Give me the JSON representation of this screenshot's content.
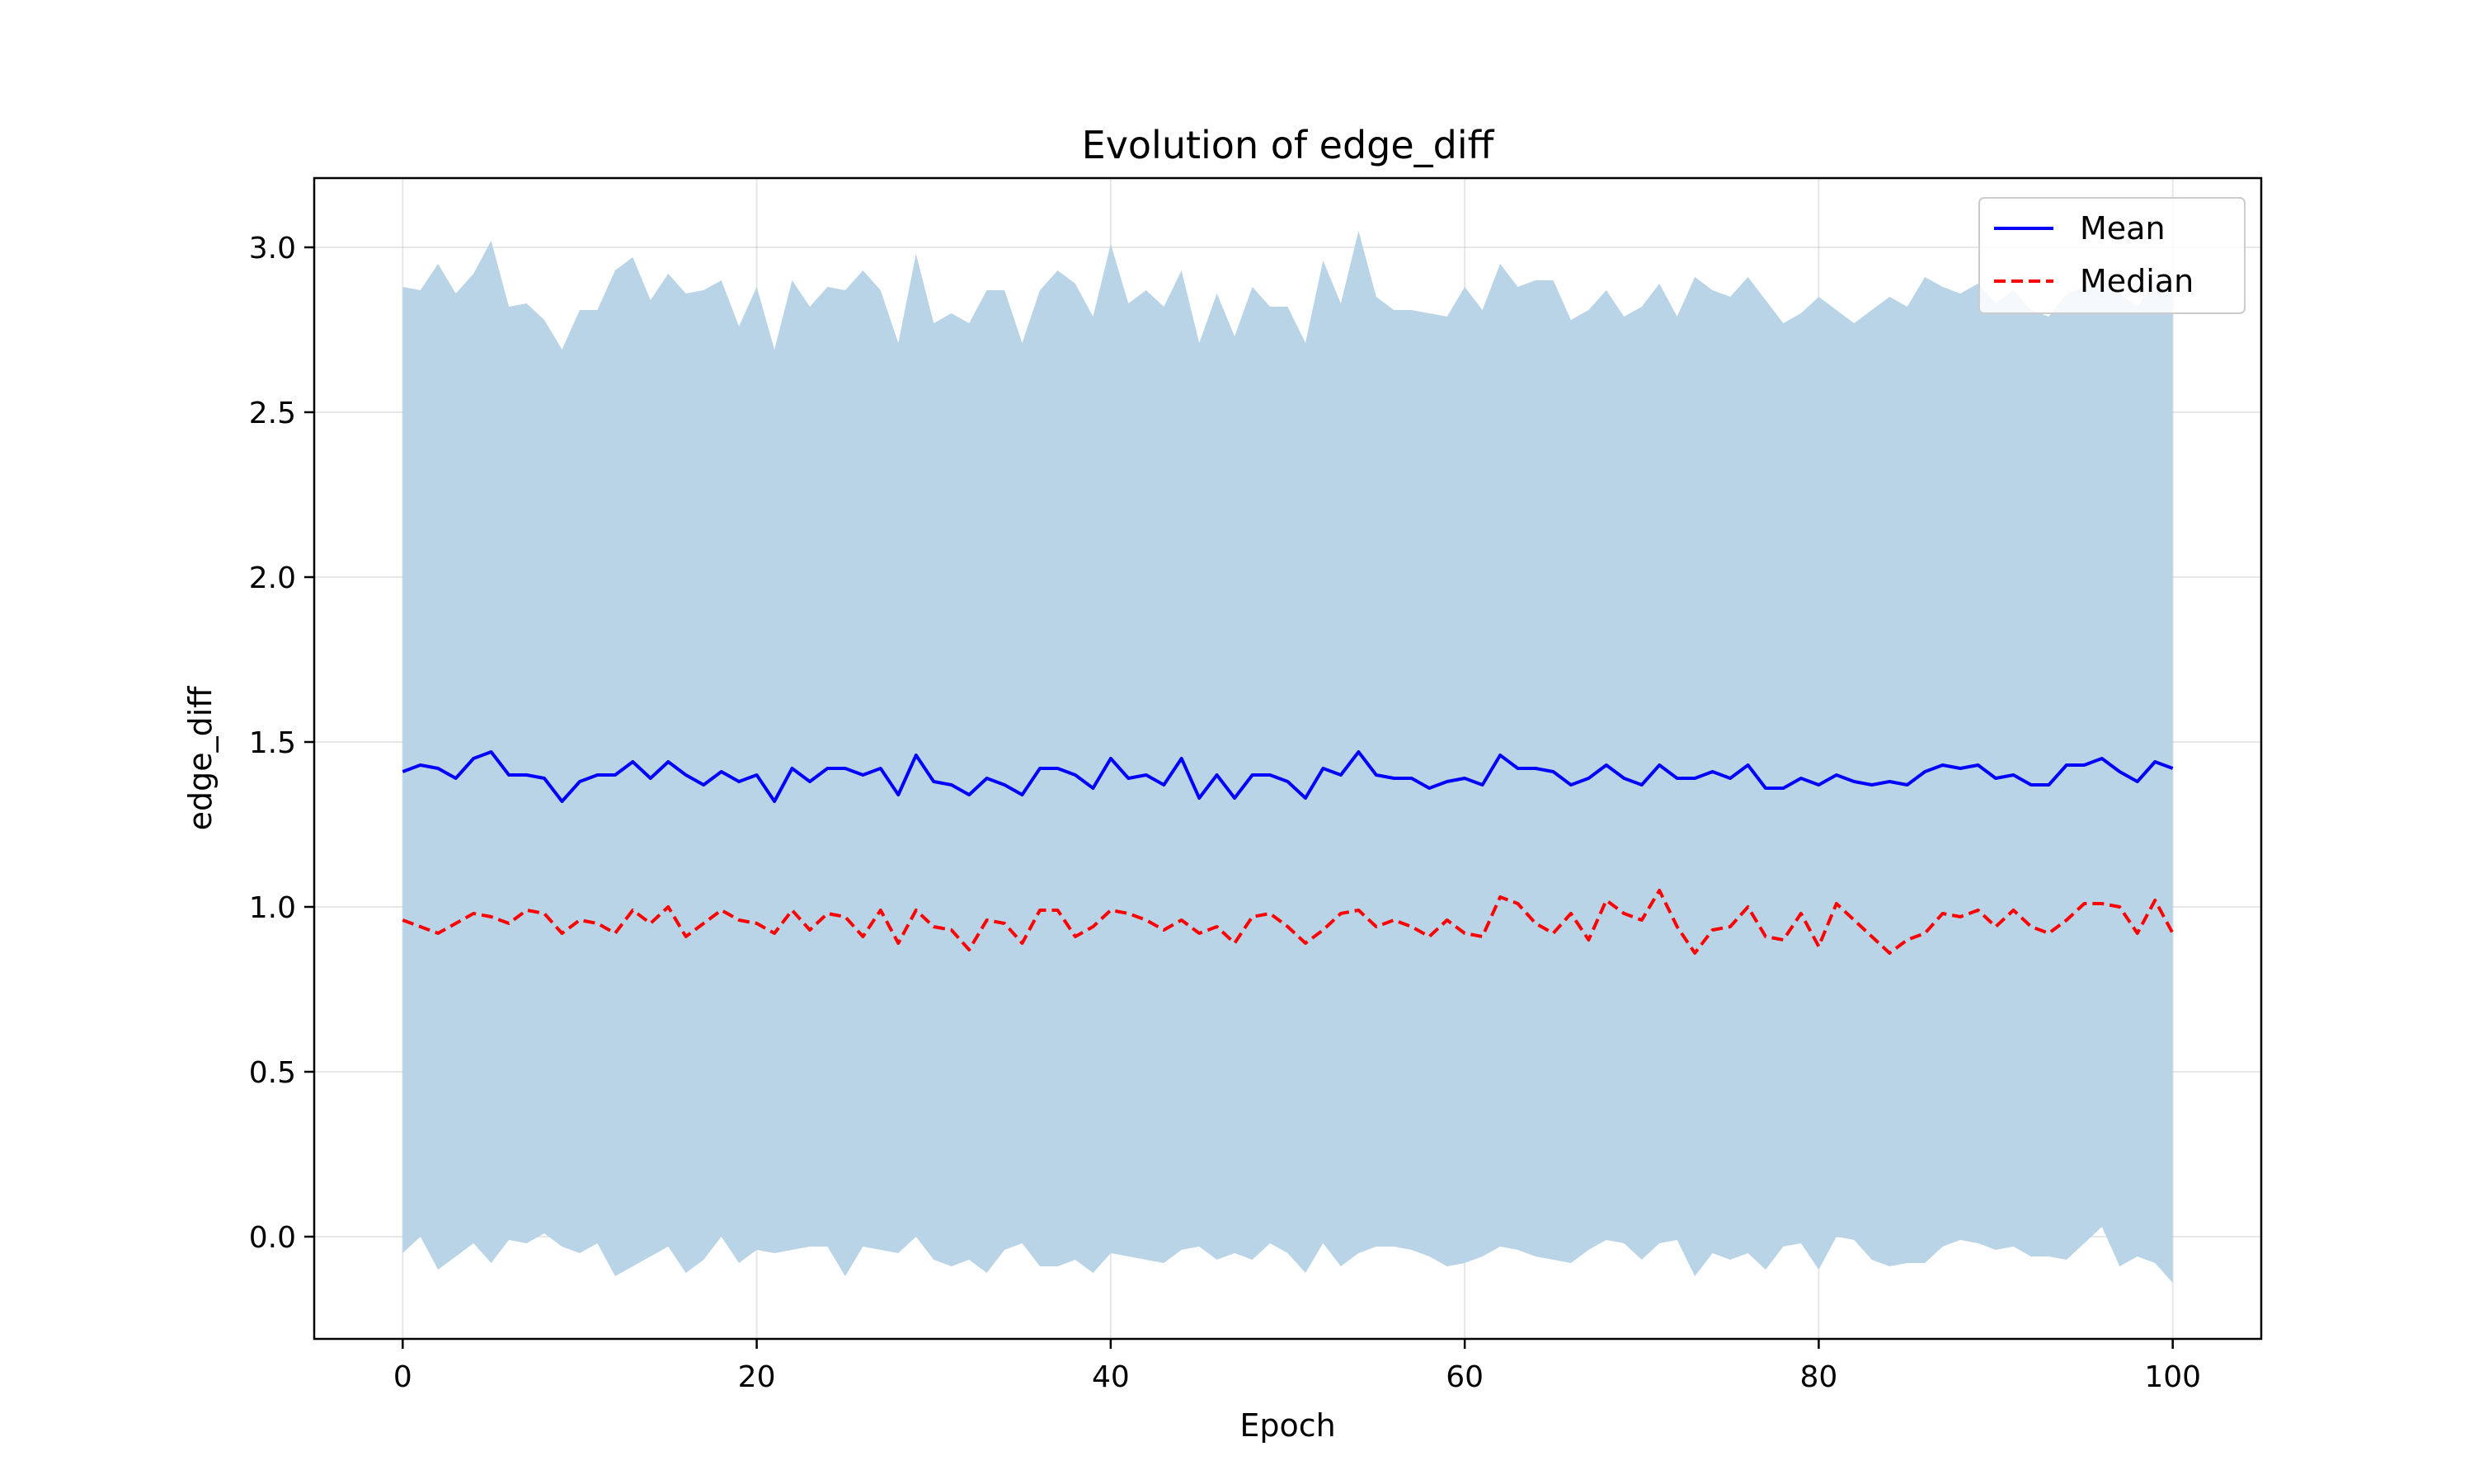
{
  "chart_data": {
    "type": "line",
    "title": "Evolution of edge_diff",
    "xlabel": "Epoch",
    "ylabel": "edge_diff",
    "xlim": [
      -5,
      105
    ],
    "ylim": [
      -0.31,
      3.21
    ],
    "xticks": [
      0,
      20,
      40,
      60,
      80,
      100
    ],
    "yticks": [
      0.0,
      0.5,
      1.0,
      1.5,
      2.0,
      2.5,
      3.0
    ],
    "xtick_labels": [
      "0",
      "20",
      "40",
      "60",
      "80",
      "100"
    ],
    "ytick_labels": [
      "0.0",
      "0.5",
      "1.0",
      "1.5",
      "2.0",
      "2.5",
      "3.0"
    ],
    "grid": true,
    "legend_position": "top-right",
    "x": [
      0,
      1,
      2,
      3,
      4,
      5,
      6,
      7,
      8,
      9,
      10,
      11,
      12,
      13,
      14,
      15,
      16,
      17,
      18,
      19,
      20,
      21,
      22,
      23,
      24,
      25,
      26,
      27,
      28,
      29,
      30,
      31,
      32,
      33,
      34,
      35,
      36,
      37,
      38,
      39,
      40,
      41,
      42,
      43,
      44,
      45,
      46,
      47,
      48,
      49,
      50,
      51,
      52,
      53,
      54,
      55,
      56,
      57,
      58,
      59,
      60,
      61,
      62,
      63,
      64,
      65,
      66,
      67,
      68,
      69,
      70,
      71,
      72,
      73,
      74,
      75,
      76,
      77,
      78,
      79,
      80,
      81,
      82,
      83,
      84,
      85,
      86,
      87,
      88,
      89,
      90,
      91,
      92,
      93,
      94,
      95,
      96,
      97,
      98,
      99,
      100
    ],
    "series": [
      {
        "name": "Mean",
        "color": "#0000ff",
        "style": "solid",
        "values": [
          1.41,
          1.43,
          1.42,
          1.39,
          1.45,
          1.47,
          1.4,
          1.4,
          1.39,
          1.32,
          1.38,
          1.4,
          1.4,
          1.44,
          1.39,
          1.44,
          1.4,
          1.37,
          1.41,
          1.38,
          1.4,
          1.32,
          1.42,
          1.38,
          1.42,
          1.42,
          1.4,
          1.42,
          1.34,
          1.46,
          1.38,
          1.37,
          1.34,
          1.39,
          1.37,
          1.34,
          1.42,
          1.42,
          1.4,
          1.36,
          1.45,
          1.39,
          1.4,
          1.37,
          1.45,
          1.33,
          1.4,
          1.33,
          1.4,
          1.4,
          1.38,
          1.33,
          1.42,
          1.4,
          1.47,
          1.4,
          1.39,
          1.39,
          1.36,
          1.38,
          1.39,
          1.37,
          1.46,
          1.42,
          1.42,
          1.41,
          1.37,
          1.39,
          1.43,
          1.39,
          1.37,
          1.43,
          1.39,
          1.39,
          1.41,
          1.39,
          1.43,
          1.36,
          1.36,
          1.39,
          1.37,
          1.4,
          1.38,
          1.37,
          1.38,
          1.37,
          1.41,
          1.43,
          1.42,
          1.43,
          1.39,
          1.4,
          1.37,
          1.37,
          1.43,
          1.43,
          1.45,
          1.41,
          1.38,
          1.44,
          1.42
        ]
      },
      {
        "name": "Median",
        "color": "#ff0000",
        "style": "dashed",
        "values": [
          0.96,
          0.94,
          0.92,
          0.95,
          0.98,
          0.97,
          0.95,
          0.99,
          0.98,
          0.92,
          0.96,
          0.95,
          0.92,
          0.99,
          0.95,
          1.0,
          0.91,
          0.95,
          0.99,
          0.96,
          0.95,
          0.92,
          0.99,
          0.93,
          0.98,
          0.97,
          0.91,
          0.99,
          0.89,
          0.99,
          0.94,
          0.93,
          0.87,
          0.96,
          0.95,
          0.89,
          0.99,
          0.99,
          0.91,
          0.94,
          0.99,
          0.98,
          0.96,
          0.93,
          0.96,
          0.92,
          0.94,
          0.89,
          0.97,
          0.98,
          0.94,
          0.89,
          0.93,
          0.98,
          0.99,
          0.94,
          0.96,
          0.94,
          0.91,
          0.96,
          0.92,
          0.91,
          1.03,
          1.01,
          0.95,
          0.92,
          0.98,
          0.9,
          1.02,
          0.98,
          0.96,
          1.05,
          0.94,
          0.86,
          0.93,
          0.94,
          1.0,
          0.91,
          0.9,
          0.98,
          0.88,
          1.01,
          0.96,
          0.91,
          0.86,
          0.9,
          0.92,
          0.98,
          0.97,
          0.99,
          0.94,
          0.99,
          0.94,
          0.92,
          0.96,
          1.01,
          1.01,
          1.0,
          0.92,
          1.02,
          0.92
        ]
      }
    ],
    "band": {
      "color": "#bad4e7",
      "upper": [
        2.88,
        2.87,
        2.95,
        2.86,
        2.92,
        3.02,
        2.82,
        2.83,
        2.78,
        2.69,
        2.81,
        2.81,
        2.93,
        2.97,
        2.84,
        2.92,
        2.86,
        2.87,
        2.9,
        2.76,
        2.88,
        2.69,
        2.9,
        2.82,
        2.88,
        2.87,
        2.93,
        2.87,
        2.71,
        2.98,
        2.77,
        2.8,
        2.77,
        2.87,
        2.87,
        2.71,
        2.87,
        2.93,
        2.89,
        2.79,
        3.01,
        2.83,
        2.87,
        2.82,
        2.93,
        2.71,
        2.86,
        2.73,
        2.88,
        2.82,
        2.82,
        2.71,
        2.96,
        2.83,
        3.05,
        2.85,
        2.81,
        2.81,
        2.8,
        2.79,
        2.88,
        2.81,
        2.95,
        2.88,
        2.9,
        2.9,
        2.78,
        2.81,
        2.87,
        2.79,
        2.82,
        2.89,
        2.79,
        2.91,
        2.87,
        2.85,
        2.91,
        2.84,
        2.77,
        2.8,
        2.85,
        2.81,
        2.77,
        2.81,
        2.85,
        2.82,
        2.91,
        2.88,
        2.86,
        2.89,
        2.83,
        2.87,
        2.81,
        2.79,
        2.86,
        2.88,
        2.9,
        2.86,
        2.82,
        2.9,
        2.87
      ],
      "lower": [
        -0.05,
        0.0,
        -0.1,
        -0.06,
        -0.02,
        -0.08,
        -0.01,
        -0.02,
        0.01,
        -0.03,
        -0.05,
        -0.02,
        -0.12,
        -0.09,
        -0.06,
        -0.03,
        -0.11,
        -0.07,
        0.0,
        -0.08,
        -0.04,
        -0.05,
        -0.04,
        -0.03,
        -0.03,
        -0.12,
        -0.03,
        -0.04,
        -0.05,
        0.0,
        -0.07,
        -0.09,
        -0.07,
        -0.11,
        -0.04,
        -0.02,
        -0.09,
        -0.09,
        -0.07,
        -0.11,
        -0.05,
        -0.06,
        -0.07,
        -0.08,
        -0.04,
        -0.03,
        -0.07,
        -0.05,
        -0.07,
        -0.02,
        -0.05,
        -0.11,
        -0.02,
        -0.09,
        -0.05,
        -0.03,
        -0.03,
        -0.04,
        -0.06,
        -0.09,
        -0.08,
        -0.06,
        -0.03,
        -0.04,
        -0.06,
        -0.07,
        -0.08,
        -0.04,
        -0.01,
        -0.02,
        -0.07,
        -0.02,
        -0.01,
        -0.12,
        -0.05,
        -0.07,
        -0.05,
        -0.1,
        -0.03,
        -0.02,
        -0.1,
        0.0,
        -0.01,
        -0.07,
        -0.09,
        -0.08,
        -0.08,
        -0.03,
        -0.01,
        -0.02,
        -0.04,
        -0.03,
        -0.06,
        -0.06,
        -0.07,
        -0.02,
        0.03,
        -0.09,
        -0.06,
        -0.08,
        -0.14
      ]
    }
  }
}
